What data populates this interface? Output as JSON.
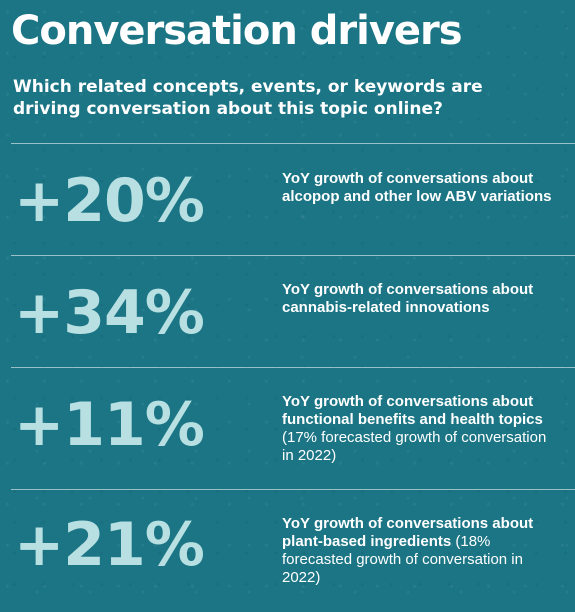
{
  "header": {
    "title": "Conversation drivers",
    "subtitle": "Which related concepts, events, or keywords are driving conversation about this topic online?"
  },
  "colors": {
    "background": "#1b7585",
    "stat_text": "#b8e0e2",
    "text": "#ffffff"
  },
  "items": [
    {
      "stat": "+20%",
      "bold_text": "YoY growth of conversations about alcopop and other low ABV variations",
      "regular_text": ""
    },
    {
      "stat": "+34%",
      "bold_text": "YoY growth of conversations about cannabis-related innovations",
      "regular_text": ""
    },
    {
      "stat": "+11%",
      "bold_text": "YoY growth of conversations about functional benefits and health topics",
      "regular_text": "(17% forecasted growth of conversation in 2022)"
    },
    {
      "stat": "+21%",
      "bold_text": "YoY growth of conversations about plant-based ingredients",
      "regular_text": "(18% forecasted growth of conversation in 2022)"
    }
  ]
}
